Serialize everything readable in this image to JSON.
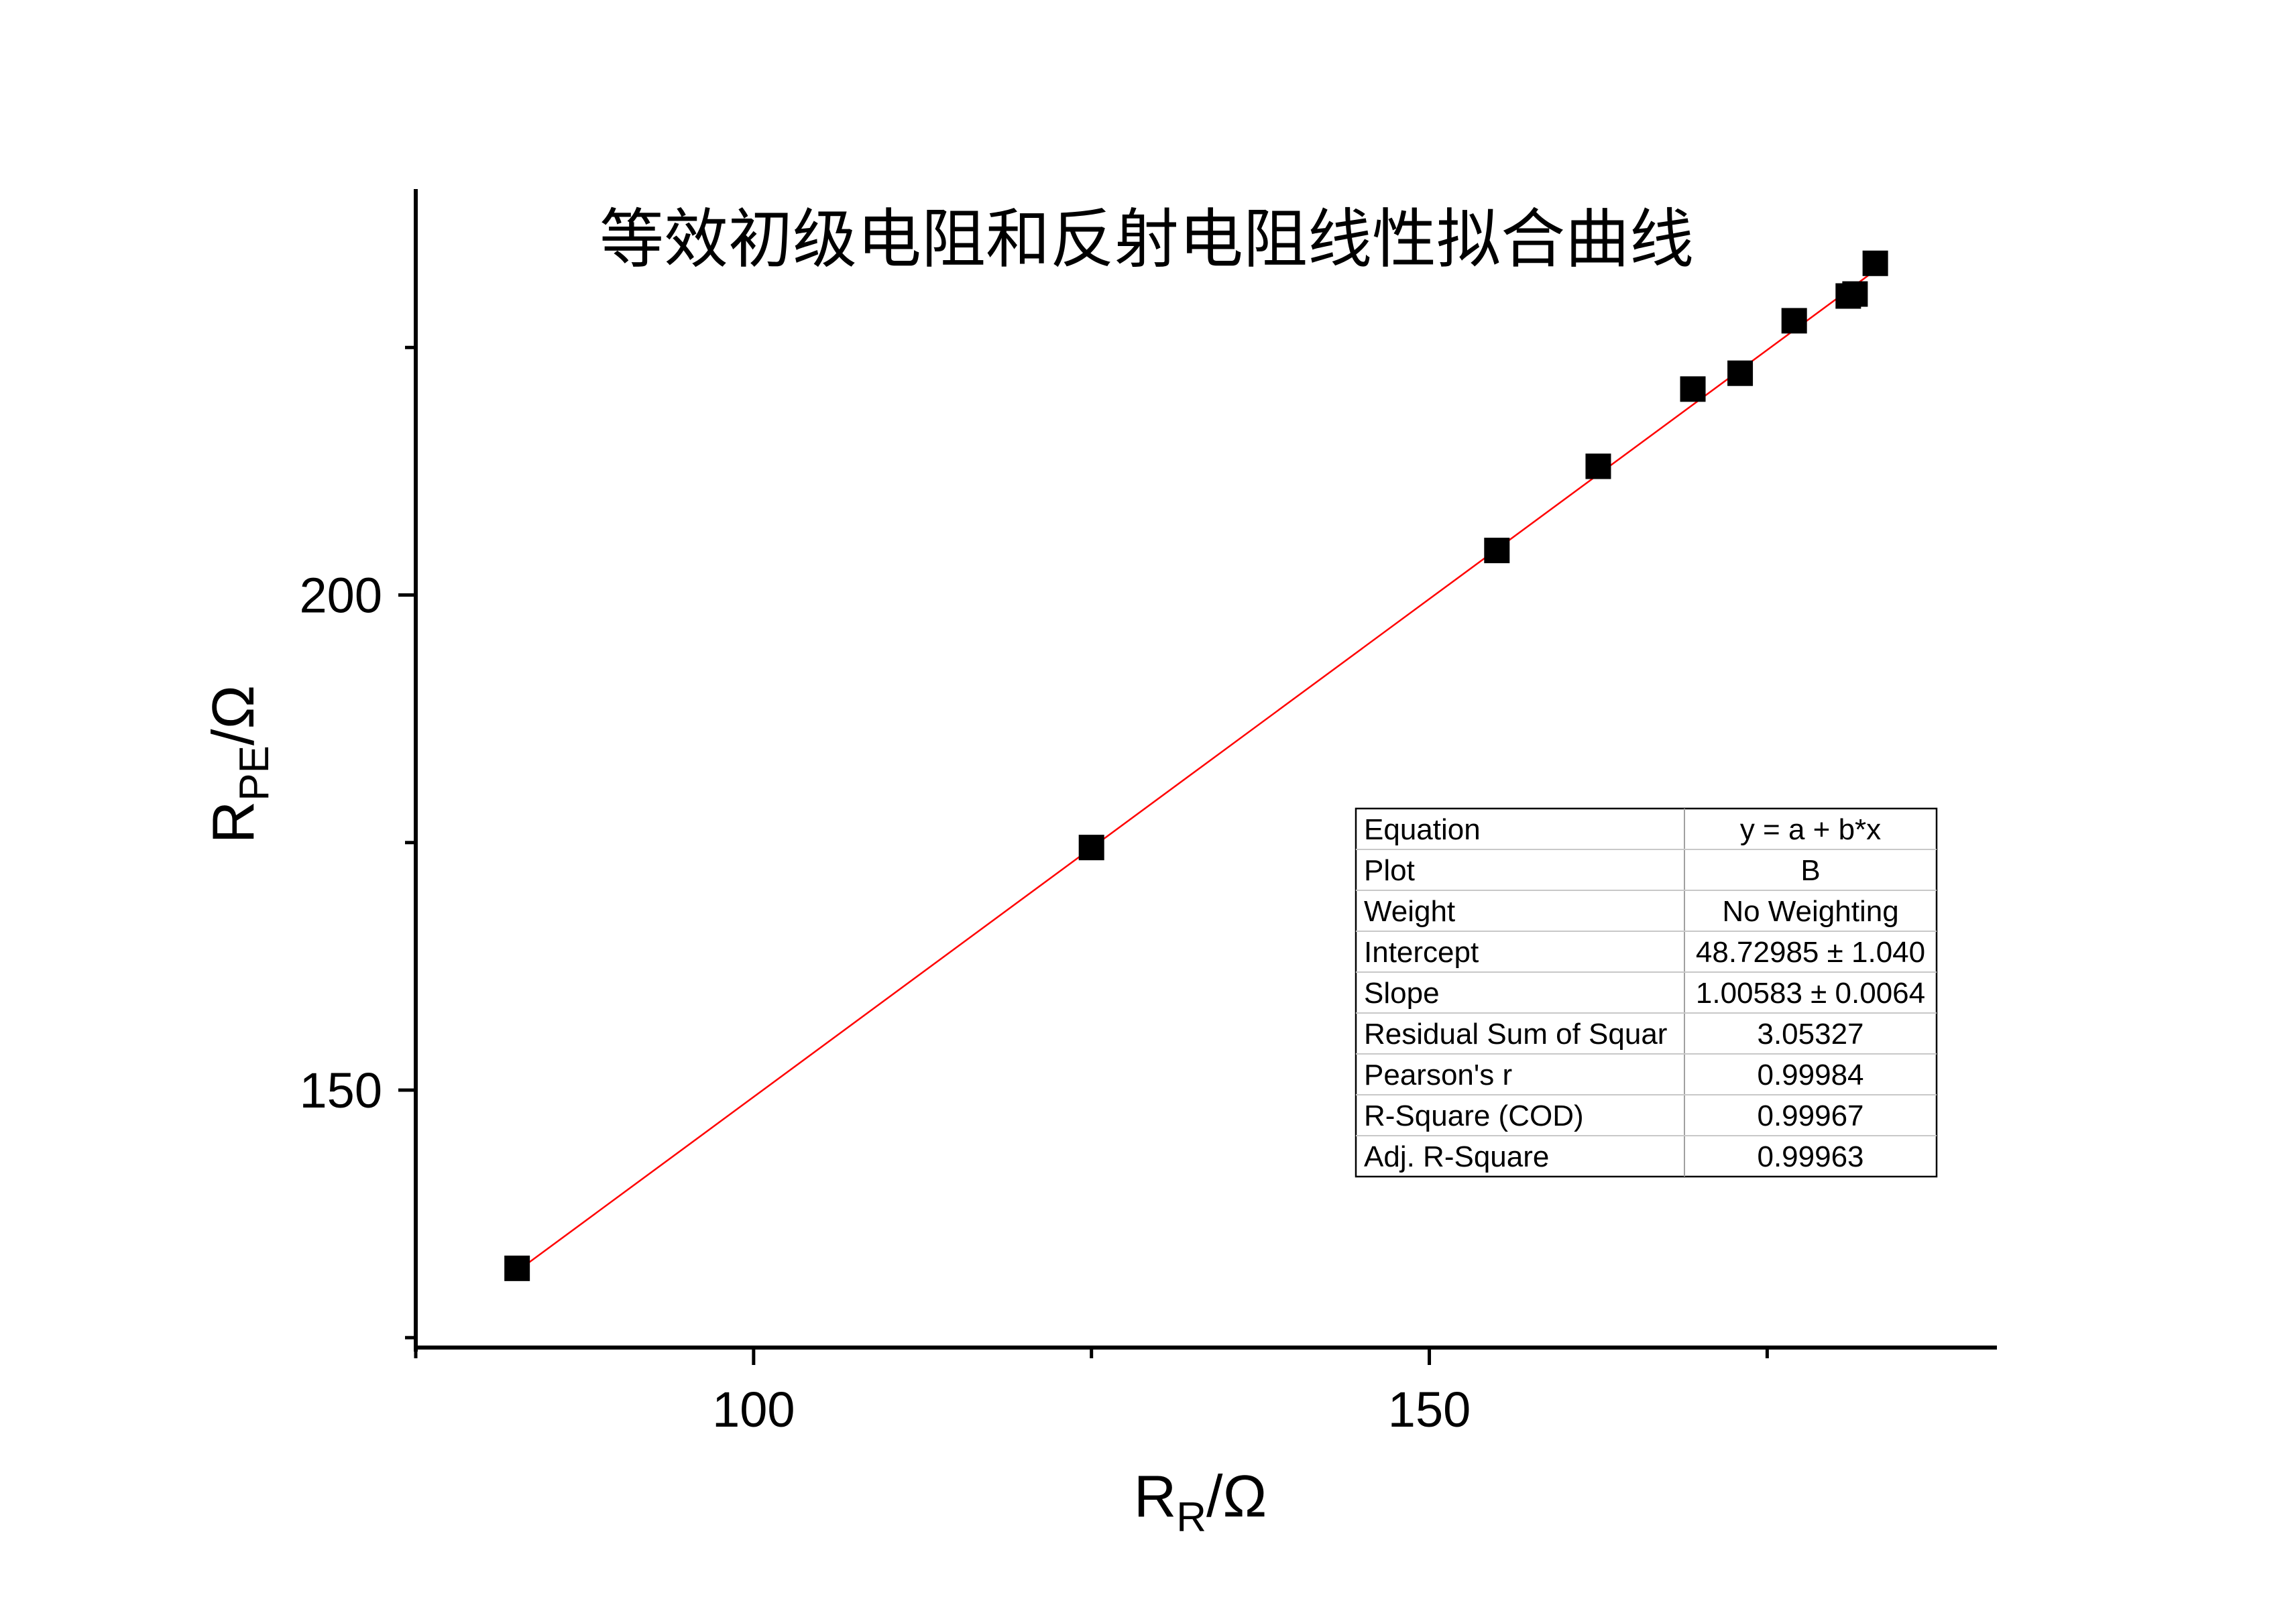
{
  "chart_data": {
    "type": "scatter",
    "title": "等效初级电阻和反射电阻线性拟合曲线",
    "xlabel": {
      "main": "R",
      "sub": "R",
      "unit": "/Ω"
    },
    "ylabel": {
      "main": "R",
      "sub": "PE",
      "unit": "/Ω"
    },
    "xlim": [
      75,
      192
    ],
    "ylim": [
      124,
      241
    ],
    "xticks": [
      100,
      150
    ],
    "yticks": [
      150,
      200
    ],
    "grid": false,
    "legend": "none",
    "marker": "square",
    "marker_color": "#000000",
    "fit_line_color": "#ff0000",
    "points": [
      {
        "x": 82.5,
        "y": 132.0
      },
      {
        "x": 125.0,
        "y": 174.5
      },
      {
        "x": 155.0,
        "y": 204.5
      },
      {
        "x": 162.5,
        "y": 213.0
      },
      {
        "x": 169.5,
        "y": 220.8
      },
      {
        "x": 173.0,
        "y": 222.4
      },
      {
        "x": 177.0,
        "y": 227.7
      },
      {
        "x": 181.0,
        "y": 230.2
      },
      {
        "x": 181.5,
        "y": 230.4
      },
      {
        "x": 183.0,
        "y": 233.5
      }
    ],
    "fit": {
      "intercept": 48.72985,
      "slope": 1.00583,
      "x_range": [
        82.5,
        183.0
      ]
    },
    "fit_table": {
      "rows": [
        [
          "Equation",
          "y = a + b*x"
        ],
        [
          "Plot",
          "B"
        ],
        [
          "Weight",
          "No Weighting"
        ],
        [
          "Intercept",
          "48.72985 ± 1.040"
        ],
        [
          "Slope",
          "1.00583 ± 0.0064"
        ],
        [
          "Residual Sum of Squar",
          "3.05327"
        ],
        [
          "Pearson's r",
          "0.99984"
        ],
        [
          "R-Square (COD)",
          "0.99967"
        ],
        [
          "Adj. R-Square",
          "0.99963"
        ]
      ]
    }
  }
}
